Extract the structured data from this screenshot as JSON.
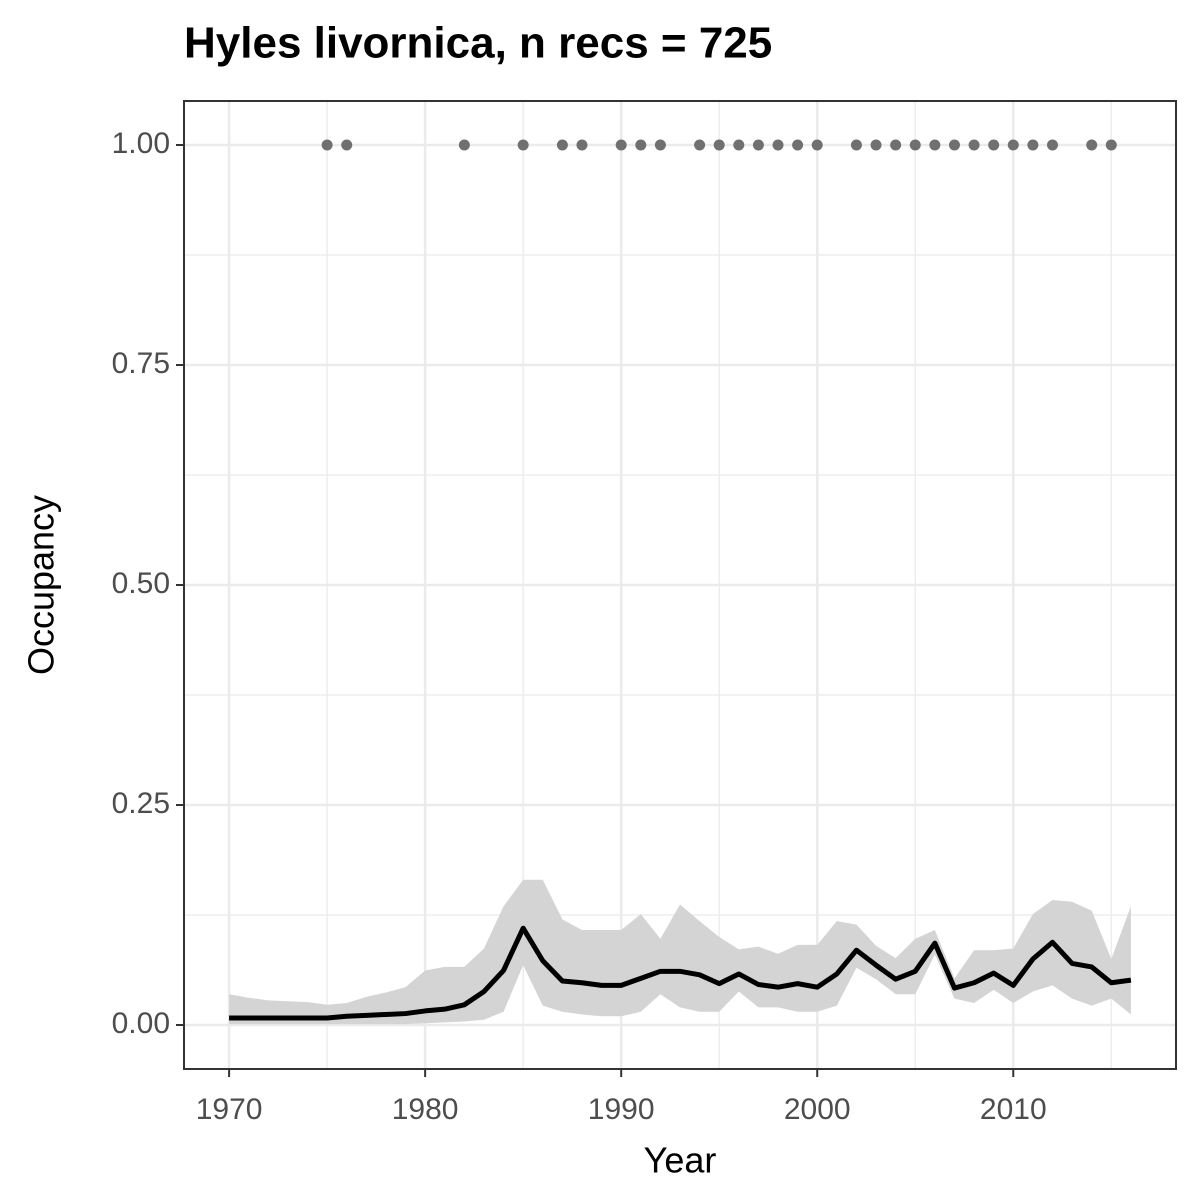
{
  "chart_data": {
    "type": "line",
    "title": "Hyles livornica, n recs = 725",
    "xlabel": "Year",
    "ylabel": "Occupancy",
    "x": [
      1970,
      1971,
      1972,
      1973,
      1974,
      1975,
      1976,
      1977,
      1978,
      1979,
      1980,
      1981,
      1982,
      1983,
      1984,
      1985,
      1986,
      1987,
      1988,
      1989,
      1990,
      1991,
      1992,
      1993,
      1994,
      1995,
      1996,
      1997,
      1998,
      1999,
      2000,
      2001,
      2002,
      2003,
      2004,
      2005,
      2006,
      2007,
      2008,
      2009,
      2010,
      2011,
      2012,
      2013,
      2014,
      2015,
      2016
    ],
    "values": [
      0.008,
      0.008,
      0.008,
      0.008,
      0.008,
      0.008,
      0.01,
      0.011,
      0.012,
      0.013,
      0.016,
      0.018,
      0.023,
      0.038,
      0.062,
      0.11,
      0.073,
      0.05,
      0.048,
      0.045,
      0.045,
      0.053,
      0.061,
      0.061,
      0.057,
      0.047,
      0.058,
      0.046,
      0.043,
      0.047,
      0.043,
      0.058,
      0.085,
      0.068,
      0.052,
      0.061,
      0.093,
      0.042,
      0.048,
      0.059,
      0.045,
      0.075,
      0.094,
      0.07,
      0.066,
      0.048,
      0.051
    ],
    "lower": [
      0.001,
      0.001,
      0.001,
      0.001,
      0.001,
      0.001,
      0.001,
      0.001,
      0.001,
      0.001,
      0.002,
      0.003,
      0.004,
      0.006,
      0.015,
      0.068,
      0.022,
      0.015,
      0.012,
      0.01,
      0.01,
      0.015,
      0.035,
      0.02,
      0.015,
      0.015,
      0.038,
      0.02,
      0.02,
      0.015,
      0.015,
      0.022,
      0.065,
      0.052,
      0.035,
      0.035,
      0.08,
      0.03,
      0.025,
      0.04,
      0.025,
      0.038,
      0.045,
      0.03,
      0.022,
      0.03,
      0.012
    ],
    "upper": [
      0.035,
      0.031,
      0.028,
      0.027,
      0.026,
      0.023,
      0.025,
      0.032,
      0.037,
      0.043,
      0.062,
      0.066,
      0.066,
      0.087,
      0.135,
      0.165,
      0.165,
      0.12,
      0.108,
      0.108,
      0.108,
      0.126,
      0.098,
      0.137,
      0.118,
      0.1,
      0.086,
      0.089,
      0.081,
      0.091,
      0.091,
      0.118,
      0.114,
      0.09,
      0.076,
      0.098,
      0.108,
      0.053,
      0.085,
      0.085,
      0.087,
      0.126,
      0.142,
      0.14,
      0.13,
      0.075,
      0.135
    ],
    "color": "#000000",
    "band_color": "#d4d4d4",
    "points": {
      "x": [
        1975,
        1976,
        1982,
        1985,
        1987,
        1988,
        1990,
        1991,
        1992,
        1994,
        1995,
        1996,
        1997,
        1998,
        1999,
        2000,
        2002,
        2003,
        2004,
        2005,
        2006,
        2007,
        2008,
        2009,
        2010,
        2011,
        2012,
        2014,
        2015
      ],
      "values": [
        1,
        1,
        1,
        1,
        1,
        1,
        1,
        1,
        1,
        1,
        1,
        1,
        1,
        1,
        1,
        1,
        1,
        1,
        1,
        1,
        1,
        1,
        1,
        1,
        1,
        1,
        1,
        1,
        1
      ],
      "color": "#707070"
    },
    "xlim": [
      1967.7,
      2018.3
    ],
    "ylim": [
      -0.05,
      1.05
    ],
    "xticks": [
      1970,
      1980,
      1990,
      2000,
      2010
    ],
    "yticks": [
      {
        "value": 0,
        "label": "0.00"
      },
      {
        "value": 0.25,
        "label": "0.25"
      },
      {
        "value": 0.5,
        "label": "0.50"
      },
      {
        "value": 0.75,
        "label": "0.75"
      },
      {
        "value": 1,
        "label": "1.00"
      }
    ],
    "grid": true
  }
}
